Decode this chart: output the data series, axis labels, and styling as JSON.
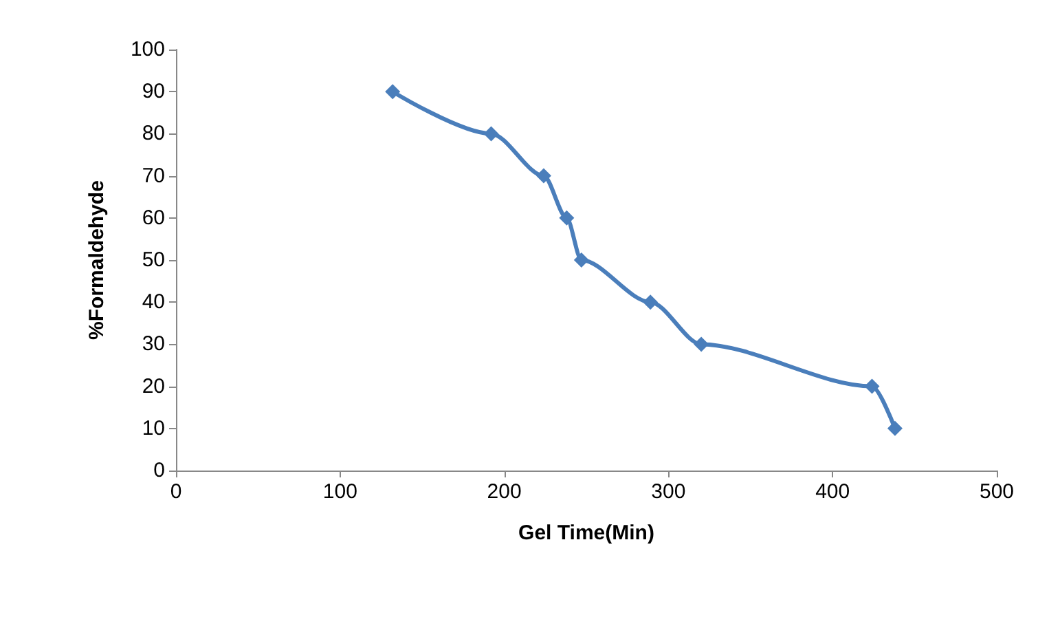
{
  "chart_data": {
    "type": "line",
    "xlabel": "Gel Time(Min)",
    "ylabel": "%Formaldehyde",
    "x": [
      132,
      192,
      224,
      238,
      247,
      289,
      320,
      424,
      438
    ],
    "series": [
      {
        "color": "#4a7ebb",
        "values": [
          90,
          80,
          70,
          60,
          50,
          40,
          30,
          20,
          10
        ]
      }
    ],
    "xlim": [
      0,
      500
    ],
    "xticks": [
      0,
      100,
      200,
      300,
      400,
      500
    ],
    "ylim": [
      0,
      100
    ],
    "yticks": [
      0,
      10,
      20,
      30,
      40,
      50,
      60,
      70,
      80,
      90,
      100
    ],
    "grid": false,
    "marker": "diamond",
    "line_style": "solid"
  }
}
